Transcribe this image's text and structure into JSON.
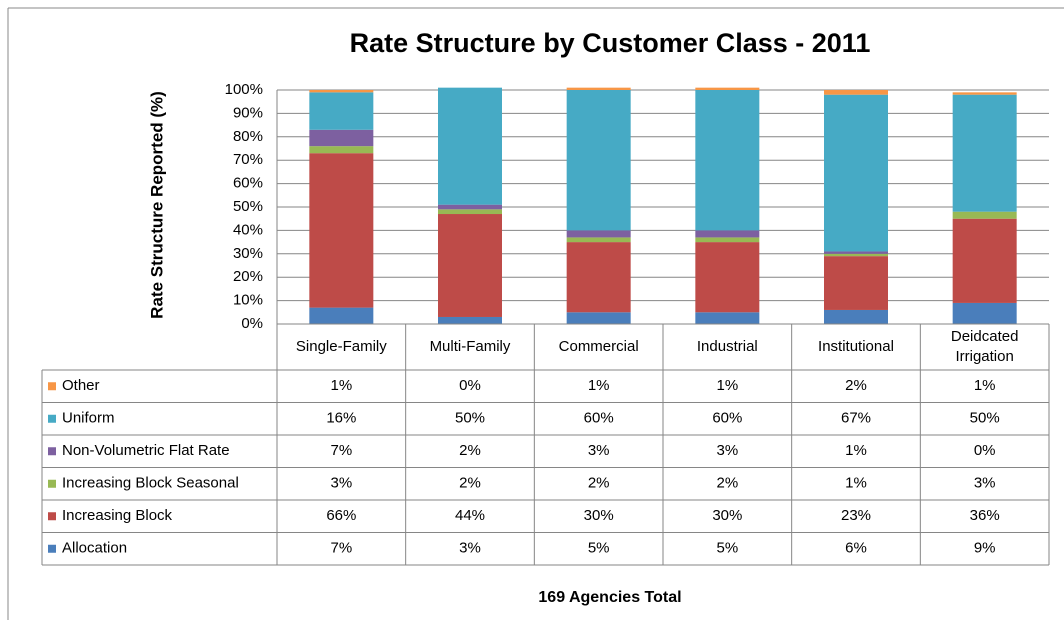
{
  "chart_data": {
    "type": "bar",
    "stacked": true,
    "title": "Rate Structure by Customer Class - 2011",
    "y_label": "Rate Structure Reported (%)",
    "x_label": "169 Agencies Total",
    "categories": [
      "Single-Family",
      "Multi-Family",
      "Commercial",
      "Industrial",
      "Institutional",
      "Deidcated Irrigation"
    ],
    "series": [
      {
        "name": "Allocation",
        "color": "#4a7ebb",
        "values": [
          7,
          3,
          5,
          5,
          6,
          9
        ],
        "value_labels": [
          "7%",
          "3%",
          "5%",
          "5%",
          "6%",
          "9%"
        ]
      },
      {
        "name": "Increasing Block",
        "color": "#be4b48",
        "values": [
          66,
          44,
          30,
          30,
          23,
          36
        ],
        "value_labels": [
          "66%",
          "44%",
          "30%",
          "30%",
          "23%",
          "36%"
        ]
      },
      {
        "name": "Increasing Block Seasonal",
        "color": "#98b954",
        "values": [
          3,
          2,
          2,
          2,
          1,
          3
        ],
        "value_labels": [
          "3%",
          "2%",
          "2%",
          "2%",
          "1%",
          "3%"
        ]
      },
      {
        "name": "Non-Volumetric Flat Rate",
        "color": "#7d60a0",
        "values": [
          7,
          2,
          3,
          3,
          1,
          0
        ],
        "value_labels": [
          "7%",
          "2%",
          "3%",
          "3%",
          "1%",
          "0%"
        ]
      },
      {
        "name": "Uniform",
        "color": "#46aac5",
        "values": [
          16,
          50,
          60,
          60,
          67,
          50
        ],
        "value_labels": [
          "16%",
          "50%",
          "60%",
          "60%",
          "67%",
          "50%"
        ]
      },
      {
        "name": "Other",
        "color": "#f79646",
        "values": [
          1,
          0,
          1,
          1,
          2,
          1
        ],
        "value_labels": [
          "1%",
          "0%",
          "1%",
          "1%",
          "2%",
          "1%"
        ]
      }
    ],
    "ylim": [
      0,
      100
    ],
    "yticks": [
      {
        "value": 0,
        "label": "0%"
      },
      {
        "value": 10,
        "label": "10%"
      },
      {
        "value": 20,
        "label": "20%"
      },
      {
        "value": 30,
        "label": "30%"
      },
      {
        "value": 40,
        "label": "40%"
      },
      {
        "value": 50,
        "label": "50%"
      },
      {
        "value": 60,
        "label": "60%"
      },
      {
        "value": 70,
        "label": "70%"
      },
      {
        "value": 80,
        "label": "80%"
      },
      {
        "value": 90,
        "label": "90%"
      },
      {
        "value": 100,
        "label": "100%"
      }
    ],
    "grid": true
  }
}
